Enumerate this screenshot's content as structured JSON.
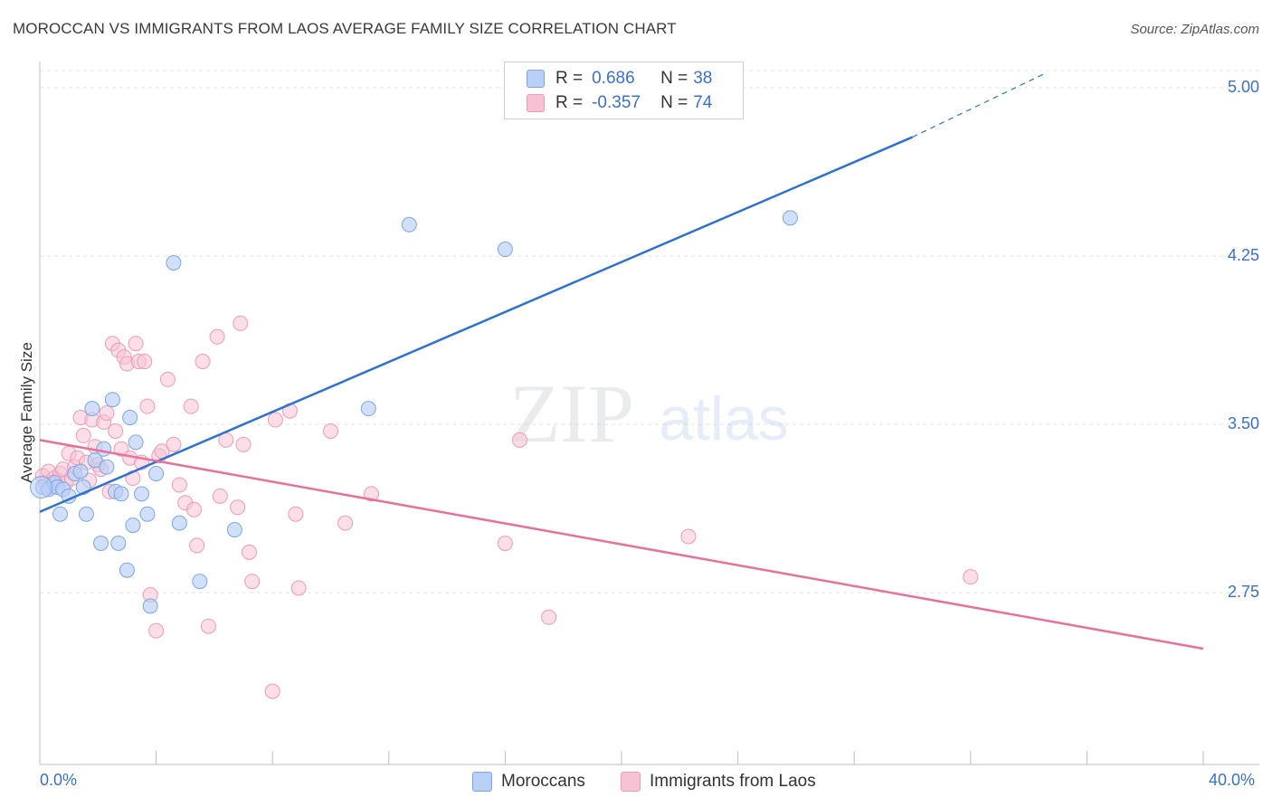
{
  "title": "MOROCCAN VS IMMIGRANTS FROM LAOS AVERAGE FAMILY SIZE CORRELATION CHART",
  "source": "Source: ZipAtlas.com",
  "watermark": {
    "zip": "ZIP",
    "atlas": "atlas"
  },
  "legend": {
    "rows": [
      {
        "r_label": "R =",
        "r_value": "0.686",
        "n_label": "N =",
        "n_value": "38"
      },
      {
        "r_label": "R =",
        "r_value": "-0.357",
        "n_label": "N =",
        "n_value": "74"
      }
    ]
  },
  "bottom_legend": [
    "Moroccans",
    "Immigrants from Laos"
  ],
  "colors": {
    "blue_fill": "#b8d0f5",
    "blue_stroke": "#7aa6e8",
    "blue_line": "#2e72d2",
    "pink_fill": "#f7c3d3",
    "pink_stroke": "#ee9ab6",
    "pink_line": "#e8719c",
    "axis_text": "#3a6fd8",
    "grid": "#e3e3e3"
  },
  "chart_data": {
    "type": "scatter",
    "title": "MOROCCAN VS IMMIGRANTS FROM LAOS AVERAGE FAMILY SIZE CORRELATION CHART",
    "xlabel": "",
    "ylabel": "Average Family Size",
    "xlim": [
      0,
      40
    ],
    "ylim": [
      2.0,
      5.1
    ],
    "x_tick_labels": [
      "0.0%",
      "40.0%"
    ],
    "y_ticks": [
      2.75,
      3.5,
      4.25,
      5.0
    ],
    "y_tick_labels": [
      "2.75",
      "3.50",
      "4.25",
      "5.00"
    ],
    "grid": true,
    "legend_position": "top-center",
    "series": [
      {
        "name": "Moroccans",
        "color": "#b8d0f5",
        "points": [
          [
            0.1,
            3.22
          ],
          [
            0.3,
            3.21
          ],
          [
            0.5,
            3.24
          ],
          [
            0.6,
            3.22
          ],
          [
            0.7,
            3.1
          ],
          [
            0.8,
            3.21
          ],
          [
            1.0,
            3.18
          ],
          [
            1.2,
            3.28
          ],
          [
            1.4,
            3.29
          ],
          [
            1.5,
            3.22
          ],
          [
            1.6,
            3.1
          ],
          [
            1.8,
            3.57
          ],
          [
            1.9,
            3.34
          ],
          [
            2.1,
            2.97
          ],
          [
            2.2,
            3.39
          ],
          [
            2.3,
            3.31
          ],
          [
            2.5,
            3.61
          ],
          [
            2.6,
            3.2
          ],
          [
            2.7,
            2.97
          ],
          [
            2.8,
            3.19
          ],
          [
            3.0,
            2.85
          ],
          [
            3.1,
            3.53
          ],
          [
            3.2,
            3.05
          ],
          [
            3.3,
            3.42
          ],
          [
            3.5,
            3.19
          ],
          [
            3.7,
            3.1
          ],
          [
            3.8,
            2.69
          ],
          [
            4.0,
            3.28
          ],
          [
            4.6,
            4.22
          ],
          [
            4.8,
            3.06
          ],
          [
            5.5,
            2.8
          ],
          [
            6.7,
            3.03
          ],
          [
            11.3,
            3.57
          ],
          [
            12.7,
            4.39
          ],
          [
            16.0,
            4.28
          ],
          [
            25.8,
            4.42
          ]
        ]
      },
      {
        "name": "Immigrants from Laos",
        "color": "#f7c3d3",
        "points": [
          [
            0.1,
            3.27
          ],
          [
            0.2,
            3.24
          ],
          [
            0.3,
            3.29
          ],
          [
            0.4,
            3.22
          ],
          [
            0.5,
            3.26
          ],
          [
            0.6,
            3.25
          ],
          [
            0.7,
            3.28
          ],
          [
            0.8,
            3.3
          ],
          [
            0.9,
            3.24
          ],
          [
            1.0,
            3.37
          ],
          [
            1.1,
            3.26
          ],
          [
            1.2,
            3.31
          ],
          [
            1.3,
            3.35
          ],
          [
            1.4,
            3.53
          ],
          [
            1.5,
            3.45
          ],
          [
            1.6,
            3.33
          ],
          [
            1.7,
            3.25
          ],
          [
            1.8,
            3.52
          ],
          [
            1.9,
            3.4
          ],
          [
            2.0,
            3.32
          ],
          [
            2.1,
            3.3
          ],
          [
            2.2,
            3.51
          ],
          [
            2.3,
            3.55
          ],
          [
            2.4,
            3.2
          ],
          [
            2.5,
            3.86
          ],
          [
            2.6,
            3.47
          ],
          [
            2.7,
            3.83
          ],
          [
            2.8,
            3.39
          ],
          [
            2.9,
            3.8
          ],
          [
            3.0,
            3.77
          ],
          [
            3.1,
            3.35
          ],
          [
            3.2,
            3.26
          ],
          [
            3.3,
            3.86
          ],
          [
            3.4,
            3.78
          ],
          [
            3.5,
            3.33
          ],
          [
            3.6,
            3.78
          ],
          [
            3.7,
            3.58
          ],
          [
            3.8,
            2.74
          ],
          [
            4.0,
            2.58
          ],
          [
            4.1,
            3.36
          ],
          [
            4.2,
            3.38
          ],
          [
            4.4,
            3.7
          ],
          [
            4.6,
            3.41
          ],
          [
            4.8,
            3.23
          ],
          [
            5.0,
            3.15
          ],
          [
            5.2,
            3.58
          ],
          [
            5.3,
            3.12
          ],
          [
            5.4,
            2.96
          ],
          [
            5.6,
            3.78
          ],
          [
            5.8,
            2.6
          ],
          [
            6.1,
            3.89
          ],
          [
            6.2,
            3.18
          ],
          [
            6.4,
            3.43
          ],
          [
            6.8,
            3.13
          ],
          [
            6.9,
            3.95
          ],
          [
            7.0,
            3.41
          ],
          [
            7.2,
            2.93
          ],
          [
            7.3,
            2.8
          ],
          [
            8.0,
            2.31
          ],
          [
            8.1,
            3.52
          ],
          [
            8.6,
            3.56
          ],
          [
            8.8,
            3.1
          ],
          [
            8.9,
            2.77
          ],
          [
            10.0,
            3.47
          ],
          [
            10.5,
            3.06
          ],
          [
            11.4,
            3.19
          ],
          [
            16.0,
            2.97
          ],
          [
            16.5,
            3.43
          ],
          [
            17.5,
            2.64
          ],
          [
            22.3,
            3.0
          ],
          [
            32.0,
            2.82
          ]
        ]
      }
    ],
    "trend_lines": [
      {
        "series": "Moroccans",
        "x": [
          0,
          30
        ],
        "y": [
          3.11,
          4.78
        ],
        "dashed_extension_to": [
          34.5,
          5.06
        ]
      },
      {
        "series": "Immigrants from Laos",
        "x": [
          0,
          40
        ],
        "y": [
          3.43,
          2.5
        ]
      }
    ]
  }
}
